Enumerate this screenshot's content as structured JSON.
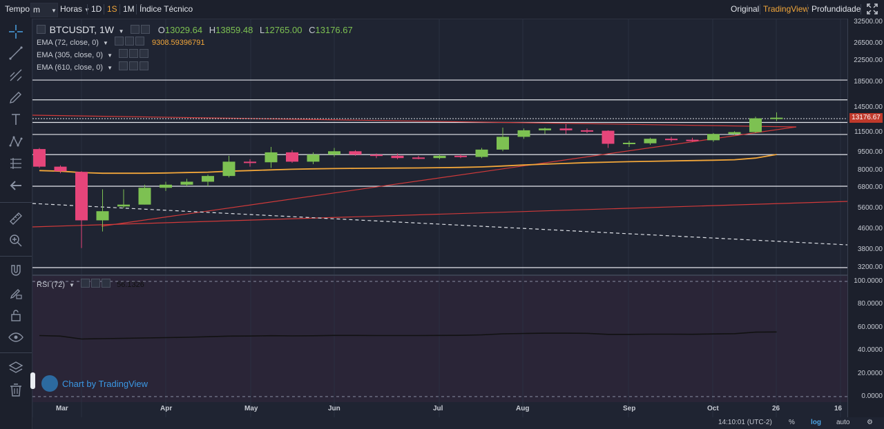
{
  "toolbar": {
    "tempo_label": "Tempo",
    "tempo_value": "m",
    "horas_label": "Horas",
    "interval_1d": "1D",
    "interval_1s": "1S",
    "interval_1m": "1M",
    "indice_tecnico": "Índice Técnico",
    "view_original": "Original",
    "view_tradingview": "TradingView",
    "view_profundidade": "Profundidade"
  },
  "legend": {
    "symbol": "BTCUSDT, 1W",
    "o_label": "O",
    "o_value": "13029.64",
    "h_label": "H",
    "h_value": "13859.48",
    "l_label": "L",
    "l_value": "12765.00",
    "c_label": "C",
    "c_value": "13176.67",
    "ema1": "EMA (72, close, 0)",
    "ema1_value": "9308.59396791",
    "ema2": "EMA (305, close, 0)",
    "ema3": "EMA (610, close, 0)",
    "rsi": "RSI (72)",
    "rsi_value": "56.1326"
  },
  "price_axis": {
    "ticks": [
      "32500.00",
      "26500.00",
      "22500.00",
      "18500.00",
      "14500.00",
      "11500.00",
      "9500.00",
      "8000.00",
      "6800.00",
      "5600.00",
      "4600.00",
      "3800.00",
      "3200.00"
    ],
    "current_price": "13176.67"
  },
  "rsi_axis": {
    "ticks": [
      "100.0000",
      "80.0000",
      "60.0000",
      "40.0000",
      "20.0000",
      "0.0000"
    ]
  },
  "time_axis": {
    "labels": [
      "Mar",
      "Apr",
      "May",
      "Jun",
      "Jul",
      "Aug",
      "Sep",
      "Oct",
      "26",
      "16"
    ]
  },
  "bottom_bar": {
    "time": "14:10:01 (UTC-2)",
    "percent": "%",
    "log": "log",
    "auto": "auto"
  },
  "watermark": "Chart by TradingView",
  "colors": {
    "up": "#7dc152",
    "down": "#e6457a",
    "ema": "#f3a73a",
    "trend": "#d23a3a",
    "accent": "#f3a73a",
    "link": "#3b98e4"
  },
  "chart_data": {
    "type": "candlestick",
    "scale": "log",
    "candles": [
      {
        "o": 9800,
        "h": 9900,
        "l": 8200,
        "c": 8300
      },
      {
        "o": 8300,
        "h": 8400,
        "l": 7800,
        "c": 7950
      },
      {
        "o": 7900,
        "h": 7950,
        "l": 3850,
        "c": 5000
      },
      {
        "o": 5000,
        "h": 6700,
        "l": 4500,
        "c": 5450
      },
      {
        "o": 5700,
        "h": 6700,
        "l": 5600,
        "c": 5800
      },
      {
        "o": 5800,
        "h": 7000,
        "l": 5800,
        "c": 6800
      },
      {
        "o": 6800,
        "h": 7200,
        "l": 6600,
        "c": 7000
      },
      {
        "o": 7000,
        "h": 7400,
        "l": 6900,
        "c": 7200
      },
      {
        "o": 7200,
        "h": 7700,
        "l": 6900,
        "c": 7600
      },
      {
        "o": 7600,
        "h": 9200,
        "l": 7500,
        "c": 8700
      },
      {
        "o": 8700,
        "h": 8900,
        "l": 8300,
        "c": 8600
      },
      {
        "o": 8650,
        "h": 10000,
        "l": 8200,
        "c": 9500
      },
      {
        "o": 9500,
        "h": 9700,
        "l": 8600,
        "c": 8700
      },
      {
        "o": 8700,
        "h": 9500,
        "l": 8500,
        "c": 9300
      },
      {
        "o": 9300,
        "h": 9900,
        "l": 9100,
        "c": 9600
      },
      {
        "o": 9600,
        "h": 9700,
        "l": 9200,
        "c": 9300
      },
      {
        "o": 9300,
        "h": 9400,
        "l": 9000,
        "c": 9200
      },
      {
        "o": 9200,
        "h": 9400,
        "l": 8900,
        "c": 9000
      },
      {
        "o": 9050,
        "h": 9200,
        "l": 8900,
        "c": 9000
      },
      {
        "o": 9000,
        "h": 9300,
        "l": 8900,
        "c": 9200
      },
      {
        "o": 9200,
        "h": 9300,
        "l": 9000,
        "c": 9100
      },
      {
        "o": 9100,
        "h": 9900,
        "l": 9000,
        "c": 9750
      },
      {
        "o": 9750,
        "h": 12000,
        "l": 9600,
        "c": 11000
      },
      {
        "o": 11000,
        "h": 11900,
        "l": 10800,
        "c": 11700
      },
      {
        "o": 11700,
        "h": 12000,
        "l": 11300,
        "c": 11900
      },
      {
        "o": 11900,
        "h": 12400,
        "l": 11300,
        "c": 11700
      },
      {
        "o": 11700,
        "h": 11900,
        "l": 11400,
        "c": 11650
      },
      {
        "o": 11650,
        "h": 11700,
        "l": 9900,
        "c": 10300
      },
      {
        "o": 10300,
        "h": 10600,
        "l": 10000,
        "c": 10400
      },
      {
        "o": 10350,
        "h": 10900,
        "l": 10200,
        "c": 10800
      },
      {
        "o": 10800,
        "h": 11000,
        "l": 10500,
        "c": 10700
      },
      {
        "o": 10700,
        "h": 10900,
        "l": 10500,
        "c": 10650
      },
      {
        "o": 10650,
        "h": 11400,
        "l": 10500,
        "c": 11300
      },
      {
        "o": 11300,
        "h": 11600,
        "l": 11200,
        "c": 11500
      },
      {
        "o": 11500,
        "h": 13300,
        "l": 11400,
        "c": 13100
      },
      {
        "o": 13029.64,
        "h": 13859.48,
        "l": 12765,
        "c": 13176.67
      }
    ],
    "ema_values": [
      8000,
      7950,
      7850,
      7800,
      7800,
      7800,
      7820,
      7850,
      7880,
      7950,
      8000,
      8050,
      8100,
      8130,
      8150,
      8170,
      8180,
      8190,
      8200,
      8220,
      8240,
      8280,
      8350,
      8430,
      8500,
      8560,
      8620,
      8660,
      8700,
      8730,
      8760,
      8790,
      8820,
      8860,
      9000,
      9308.59
    ],
    "horizontal_levels": [
      18800,
      15600,
      12600,
      11250,
      9300,
      6900,
      3200
    ],
    "rsi_value": 56.1326,
    "rsi_series": [
      53,
      52.5,
      50,
      50.3,
      50.6,
      50.9,
      51.2,
      51.5,
      52,
      52.5,
      52.6,
      52.9,
      52.7,
      52.8,
      53.1,
      53.1,
      53.0,
      53.0,
      53.0,
      53.1,
      53.2,
      53.6,
      54.5,
      54.8,
      55.0,
      55.0,
      54.9,
      54.0,
      54.0,
      54.2,
      54.2,
      54.1,
      54.4,
      54.6,
      55.9,
      56.1
    ]
  }
}
